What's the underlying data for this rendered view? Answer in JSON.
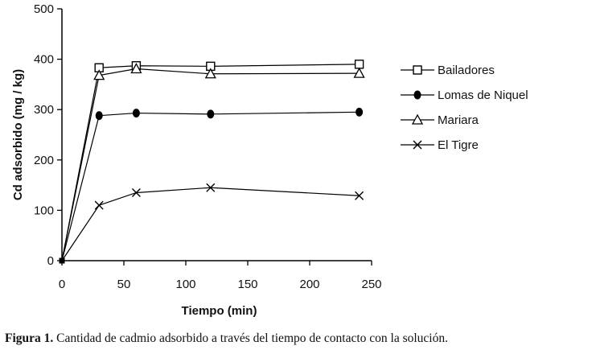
{
  "chart_data": {
    "type": "line",
    "xlabel": "Tiempo (min)",
    "ylabel": "Cd adsorbido (mg / kg)",
    "xlim": [
      0,
      250
    ],
    "ylim": [
      0,
      500
    ],
    "xticks": [
      0,
      50,
      100,
      150,
      200,
      250
    ],
    "yticks": [
      0,
      100,
      200,
      300,
      400,
      500
    ],
    "grid": false,
    "legend_position": "right",
    "series": [
      {
        "name": "Bailadores",
        "marker": "square-open",
        "color": "#000000",
        "x": [
          0,
          30,
          60,
          120,
          240
        ],
        "y": [
          0,
          383,
          387,
          386,
          390
        ]
      },
      {
        "name": "Lomas de Niquel",
        "marker": "circle-filled",
        "color": "#000000",
        "x": [
          0,
          30,
          60,
          120,
          240
        ],
        "y": [
          0,
          288,
          293,
          291,
          295
        ]
      },
      {
        "name": "Mariara",
        "marker": "triangle-open",
        "color": "#000000",
        "x": [
          0,
          30,
          60,
          120,
          240
        ],
        "y": [
          0,
          368,
          381,
          371,
          372
        ]
      },
      {
        "name": "El Tigre",
        "marker": "cross",
        "color": "#000000",
        "x": [
          0,
          30,
          60,
          120,
          240
        ],
        "y": [
          0,
          110,
          135,
          145,
          129
        ]
      }
    ]
  },
  "caption": {
    "label": "Figura 1.",
    "text": " Cantidad de cadmio adsorbido a través del tiempo de contacto con la solución."
  }
}
